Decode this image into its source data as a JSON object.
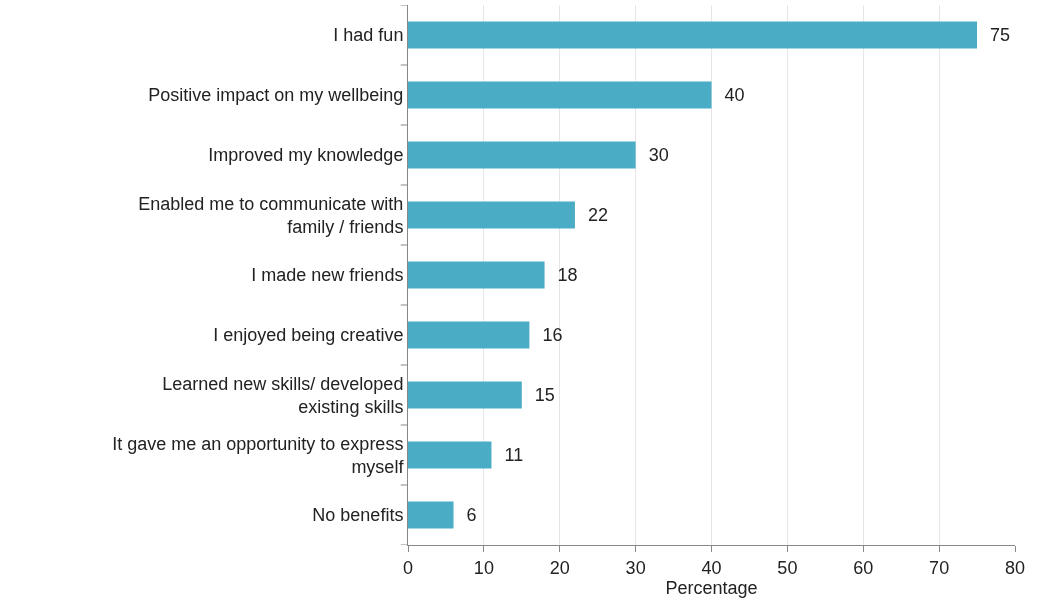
{
  "chart_data": {
    "type": "bar",
    "orientation": "horizontal",
    "categories": [
      "I had fun",
      "Positive impact on my wellbeing",
      "Improved my knowledge",
      "Enabled me to communicate with family / friends",
      "I made new friends",
      "I enjoyed being creative",
      "Learned new skills/ developed existing skills",
      "It gave me an opportunity to express myself",
      "No benefits"
    ],
    "values": [
      75,
      40,
      30,
      22,
      18,
      16,
      15,
      11,
      6
    ],
    "color": "#4bacc6",
    "xlabel": "Percentage",
    "xlim": [
      0,
      80
    ],
    "xticks": [
      0,
      10,
      20,
      30,
      40,
      50,
      60,
      70,
      80
    ],
    "grid": "x",
    "data_labels": true
  }
}
